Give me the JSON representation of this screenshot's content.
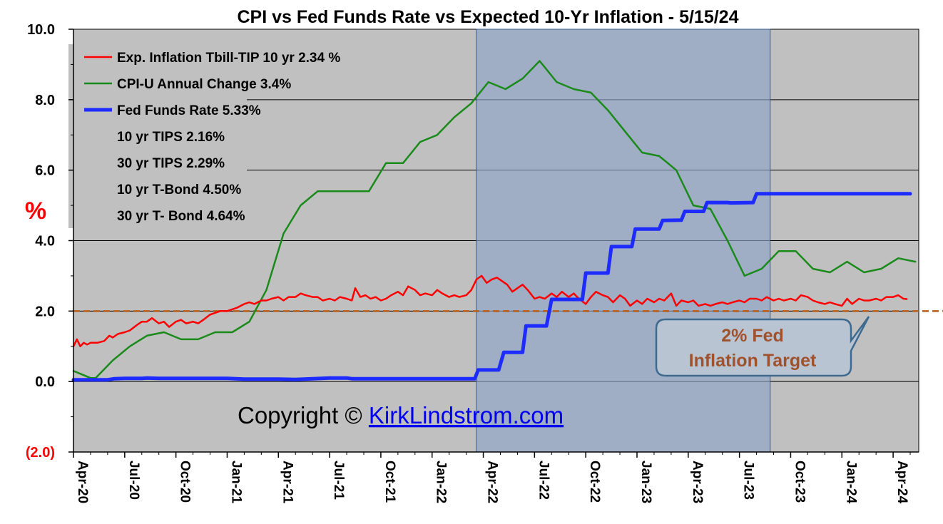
{
  "chart_data": {
    "type": "line",
    "title": "CPI vs Fed Funds Rate vs Expected 10-Yr Inflation  - 5/15/24",
    "ylabel": "%",
    "ylim": [
      -2.0,
      10.0
    ],
    "yticks": [
      {
        "value": 10.0,
        "label": "10.0"
      },
      {
        "value": 8.0,
        "label": "8.0"
      },
      {
        "value": 6.0,
        "label": "6.0"
      },
      {
        "value": 4.0,
        "label": "4.0"
      },
      {
        "value": 2.0,
        "label": "2.0"
      },
      {
        "value": 0.0,
        "label": "0.0"
      },
      {
        "value": -2.0,
        "label": "(2.0)"
      }
    ],
    "xlim": [
      0,
      49.5
    ],
    "xticks": [
      {
        "pos": 0,
        "label": "Apr-20"
      },
      {
        "pos": 3,
        "label": "Jul-20"
      },
      {
        "pos": 6,
        "label": "Oct-20"
      },
      {
        "pos": 9,
        "label": "Jan-21"
      },
      {
        "pos": 12,
        "label": "Apr-21"
      },
      {
        "pos": 15,
        "label": "Jul-21"
      },
      {
        "pos": 18,
        "label": "Oct-21"
      },
      {
        "pos": 21,
        "label": "Jan-22"
      },
      {
        "pos": 24,
        "label": "Apr-22"
      },
      {
        "pos": 27,
        "label": "Jul-22"
      },
      {
        "pos": 30,
        "label": "Oct-22"
      },
      {
        "pos": 33,
        "label": "Jan-23"
      },
      {
        "pos": 36,
        "label": "Apr-23"
      },
      {
        "pos": 39,
        "label": "Jul-23"
      },
      {
        "pos": 42,
        "label": "Oct-23"
      },
      {
        "pos": 45,
        "label": "Jan-24"
      },
      {
        "pos": 48,
        "label": "Apr-24"
      }
    ],
    "grid": true,
    "shaded_region": {
      "from": 23.6,
      "to": 40.8
    },
    "reference_line": {
      "value": 2.0,
      "label": "2% Fed Inflation Target",
      "color": "#b85c18"
    },
    "series": [
      {
        "name": "Exp. Inflation Tbill-TIP 10 yr 2.34 %",
        "color": "#ff0000",
        "width": 2.5,
        "points": [
          [
            0,
            1.0
          ],
          [
            0.2,
            1.2
          ],
          [
            0.4,
            1.0
          ],
          [
            0.6,
            1.1
          ],
          [
            0.8,
            1.05
          ],
          [
            1.0,
            1.1
          ],
          [
            1.4,
            1.1
          ],
          [
            1.8,
            1.15
          ],
          [
            2.1,
            1.3
          ],
          [
            2.3,
            1.25
          ],
          [
            2.6,
            1.35
          ],
          [
            3.0,
            1.4
          ],
          [
            3.3,
            1.45
          ],
          [
            3.7,
            1.6
          ],
          [
            4.0,
            1.7
          ],
          [
            4.3,
            1.7
          ],
          [
            4.6,
            1.8
          ],
          [
            5.0,
            1.65
          ],
          [
            5.3,
            1.7
          ],
          [
            5.6,
            1.55
          ],
          [
            6.0,
            1.7
          ],
          [
            6.3,
            1.75
          ],
          [
            6.6,
            1.65
          ],
          [
            7.0,
            1.7
          ],
          [
            7.3,
            1.65
          ],
          [
            7.6,
            1.75
          ],
          [
            8.0,
            1.9
          ],
          [
            8.3,
            1.95
          ],
          [
            8.6,
            2.0
          ],
          [
            9.0,
            2.0
          ],
          [
            9.3,
            2.05
          ],
          [
            9.6,
            2.1
          ],
          [
            10.0,
            2.2
          ],
          [
            10.3,
            2.25
          ],
          [
            10.6,
            2.2
          ],
          [
            11.0,
            2.3
          ],
          [
            11.3,
            2.3
          ],
          [
            11.6,
            2.35
          ],
          [
            12.0,
            2.4
          ],
          [
            12.3,
            2.3
          ],
          [
            12.6,
            2.4
          ],
          [
            13.0,
            2.4
          ],
          [
            13.3,
            2.5
          ],
          [
            13.6,
            2.45
          ],
          [
            14.0,
            2.4
          ],
          [
            14.3,
            2.4
          ],
          [
            14.6,
            2.3
          ],
          [
            15.0,
            2.35
          ],
          [
            15.3,
            2.3
          ],
          [
            15.6,
            2.4
          ],
          [
            16.0,
            2.35
          ],
          [
            16.3,
            2.3
          ],
          [
            16.5,
            2.65
          ],
          [
            16.8,
            2.4
          ],
          [
            17.1,
            2.45
          ],
          [
            17.4,
            2.35
          ],
          [
            17.7,
            2.4
          ],
          [
            18.0,
            2.3
          ],
          [
            18.3,
            2.35
          ],
          [
            18.6,
            2.45
          ],
          [
            19.0,
            2.55
          ],
          [
            19.3,
            2.45
          ],
          [
            19.6,
            2.7
          ],
          [
            20.0,
            2.6
          ],
          [
            20.3,
            2.45
          ],
          [
            20.6,
            2.5
          ],
          [
            21.0,
            2.45
          ],
          [
            21.3,
            2.6
          ],
          [
            21.6,
            2.5
          ],
          [
            22.0,
            2.4
          ],
          [
            22.3,
            2.45
          ],
          [
            22.6,
            2.4
          ],
          [
            23.0,
            2.45
          ],
          [
            23.3,
            2.6
          ],
          [
            23.6,
            2.9
          ],
          [
            23.9,
            3.0
          ],
          [
            24.2,
            2.8
          ],
          [
            24.5,
            2.9
          ],
          [
            24.8,
            2.95
          ],
          [
            25.1,
            2.85
          ],
          [
            25.4,
            2.75
          ],
          [
            25.7,
            2.55
          ],
          [
            26.0,
            2.65
          ],
          [
            26.3,
            2.75
          ],
          [
            26.6,
            2.6
          ],
          [
            27.0,
            2.35
          ],
          [
            27.3,
            2.4
          ],
          [
            27.6,
            2.35
          ],
          [
            28.0,
            2.5
          ],
          [
            28.3,
            2.4
          ],
          [
            28.6,
            2.55
          ],
          [
            29.0,
            2.4
          ],
          [
            29.3,
            2.5
          ],
          [
            29.6,
            2.35
          ],
          [
            30.0,
            2.2
          ],
          [
            30.3,
            2.4
          ],
          [
            30.6,
            2.55
          ],
          [
            31.0,
            2.45
          ],
          [
            31.3,
            2.4
          ],
          [
            31.6,
            2.25
          ],
          [
            32.0,
            2.45
          ],
          [
            32.3,
            2.35
          ],
          [
            32.6,
            2.15
          ],
          [
            33.0,
            2.3
          ],
          [
            33.3,
            2.2
          ],
          [
            33.6,
            2.35
          ],
          [
            34.0,
            2.25
          ],
          [
            34.3,
            2.35
          ],
          [
            34.6,
            2.3
          ],
          [
            35.0,
            2.5
          ],
          [
            35.3,
            2.15
          ],
          [
            35.6,
            2.3
          ],
          [
            36.0,
            2.25
          ],
          [
            36.3,
            2.3
          ],
          [
            36.6,
            2.15
          ],
          [
            37.0,
            2.2
          ],
          [
            37.3,
            2.15
          ],
          [
            37.6,
            2.2
          ],
          [
            38.0,
            2.25
          ],
          [
            38.3,
            2.2
          ],
          [
            38.6,
            2.25
          ],
          [
            39.0,
            2.3
          ],
          [
            39.3,
            2.25
          ],
          [
            39.6,
            2.35
          ],
          [
            40.0,
            2.35
          ],
          [
            40.3,
            2.3
          ],
          [
            40.6,
            2.4
          ],
          [
            41.0,
            2.3
          ],
          [
            41.3,
            2.35
          ],
          [
            41.6,
            2.3
          ],
          [
            42.0,
            2.35
          ],
          [
            42.3,
            2.3
          ],
          [
            42.6,
            2.45
          ],
          [
            43.0,
            2.4
          ],
          [
            43.3,
            2.3
          ],
          [
            43.6,
            2.25
          ],
          [
            44.0,
            2.2
          ],
          [
            44.3,
            2.25
          ],
          [
            44.6,
            2.2
          ],
          [
            45.0,
            2.15
          ],
          [
            45.3,
            2.35
          ],
          [
            45.6,
            2.2
          ],
          [
            46.0,
            2.35
          ],
          [
            46.3,
            2.3
          ],
          [
            46.6,
            2.3
          ],
          [
            47.0,
            2.35
          ],
          [
            47.3,
            2.3
          ],
          [
            47.6,
            2.4
          ],
          [
            48.0,
            2.4
          ],
          [
            48.3,
            2.45
          ],
          [
            48.6,
            2.35
          ],
          [
            48.8,
            2.34
          ]
        ]
      },
      {
        "name": "CPI-U Annual Change 3.4%",
        "color": "#1a8a1a",
        "width": 2.5,
        "points": [
          [
            0,
            0.3
          ],
          [
            1.0,
            0.1
          ],
          [
            1.3,
            0.1
          ],
          [
            2.3,
            0.6
          ],
          [
            3.3,
            1.0
          ],
          [
            4.3,
            1.3
          ],
          [
            5.3,
            1.4
          ],
          [
            6.3,
            1.2
          ],
          [
            7.3,
            1.2
          ],
          [
            8.3,
            1.4
          ],
          [
            9.3,
            1.4
          ],
          [
            10.3,
            1.7
          ],
          [
            11.3,
            2.6
          ],
          [
            12.3,
            4.2
          ],
          [
            13.3,
            5.0
          ],
          [
            14.3,
            5.4
          ],
          [
            15.3,
            5.4
          ],
          [
            16.3,
            5.4
          ],
          [
            17.3,
            5.4
          ],
          [
            18.3,
            6.2
          ],
          [
            19.3,
            6.2
          ],
          [
            20.3,
            6.8
          ],
          [
            21.3,
            7.0
          ],
          [
            22.3,
            7.5
          ],
          [
            23.3,
            7.9
          ],
          [
            24.3,
            8.5
          ],
          [
            25.3,
            8.3
          ],
          [
            26.3,
            8.6
          ],
          [
            27.3,
            9.1
          ],
          [
            28.3,
            8.5
          ],
          [
            29.3,
            8.3
          ],
          [
            30.3,
            8.2
          ],
          [
            31.3,
            7.7
          ],
          [
            32.3,
            7.1
          ],
          [
            33.3,
            6.5
          ],
          [
            34.3,
            6.4
          ],
          [
            35.3,
            6.0
          ],
          [
            36.3,
            5.0
          ],
          [
            37.3,
            4.9
          ],
          [
            38.3,
            4.0
          ],
          [
            39.3,
            3.0
          ],
          [
            40.3,
            3.2
          ],
          [
            41.3,
            3.7
          ],
          [
            42.3,
            3.7
          ],
          [
            43.3,
            3.2
          ],
          [
            44.3,
            3.1
          ],
          [
            45.3,
            3.4
          ],
          [
            46.3,
            3.1
          ],
          [
            47.3,
            3.2
          ],
          [
            48.3,
            3.5
          ],
          [
            49.3,
            3.4
          ]
        ]
      },
      {
        "name": "Fed Funds Rate 5.33%",
        "color": "#1e2bff",
        "width": 5,
        "points": [
          [
            0,
            0.05
          ],
          [
            2,
            0.05
          ],
          [
            2.4,
            0.08
          ],
          [
            3,
            0.09
          ],
          [
            4,
            0.09
          ],
          [
            4.3,
            0.1
          ],
          [
            5,
            0.09
          ],
          [
            8,
            0.09
          ],
          [
            9,
            0.09
          ],
          [
            10,
            0.07
          ],
          [
            12,
            0.07
          ],
          [
            13,
            0.06
          ],
          [
            14,
            0.08
          ],
          [
            15,
            0.1
          ],
          [
            16,
            0.1
          ],
          [
            16.3,
            0.08
          ],
          [
            17,
            0.08
          ],
          [
            23.5,
            0.08
          ],
          [
            23.7,
            0.33
          ],
          [
            24.9,
            0.33
          ],
          [
            25.2,
            0.83
          ],
          [
            26.3,
            0.83
          ],
          [
            26.5,
            1.58
          ],
          [
            27.7,
            1.58
          ],
          [
            28.0,
            2.33
          ],
          [
            29.8,
            2.33
          ],
          [
            30.0,
            3.08
          ],
          [
            31.3,
            3.08
          ],
          [
            31.5,
            3.83
          ],
          [
            32.7,
            3.83
          ],
          [
            32.9,
            4.33
          ],
          [
            34.3,
            4.33
          ],
          [
            34.5,
            4.57
          ],
          [
            35.6,
            4.58
          ],
          [
            35.8,
            4.83
          ],
          [
            36.9,
            4.83
          ],
          [
            37.1,
            5.08
          ],
          [
            38.3,
            5.08
          ],
          [
            38.5,
            5.07
          ],
          [
            39.8,
            5.08
          ],
          [
            40.0,
            5.33
          ],
          [
            49.0,
            5.33
          ]
        ]
      }
    ],
    "legend_extra": [
      "10 yr TIPS 2.16%",
      "30 yr TIPS 2.29%",
      "10 yr T-Bond 4.50%",
      "30 yr T- Bond 4.64%"
    ],
    "legend_position": "top-left",
    "annotations": {
      "copyright_prefix": "Copyright © ",
      "copyright_link": "KirkLindstrom.com",
      "target_line1": "2% Fed",
      "target_line2": "Inflation Target"
    }
  }
}
